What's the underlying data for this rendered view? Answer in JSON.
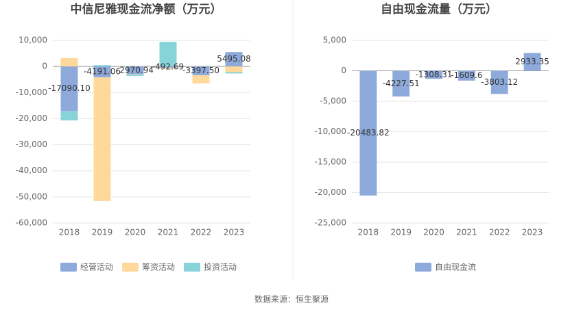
{
  "chart_data": [
    {
      "type": "bar",
      "title": "中信尼雅现金流净额（万元）",
      "categories": [
        "2018",
        "2019",
        "2020",
        "2021",
        "2022",
        "2023"
      ],
      "series": [
        {
          "name": "经营活动",
          "color": "#8eaadb",
          "values": [
            -17090.1,
            -4191.06,
            -2970.94,
            -492.69,
            -3397.5,
            5495.08
          ],
          "value_labels": [
            "-17090.10",
            "-4191.06",
            "-2970.94",
            "-492.69",
            "-3397.50",
            "5495.08"
          ]
        },
        {
          "name": "筹资活动",
          "color": "#ffd89b",
          "values": [
            3200,
            -47400,
            -200,
            -300,
            -3100,
            -2200
          ]
        },
        {
          "name": "投资活动",
          "color": "#86d4d8",
          "values": [
            -3600,
            500,
            -500,
            9400,
            0,
            -500
          ]
        }
      ],
      "stacked": true,
      "ylim": [
        -60000,
        10000
      ],
      "yticks": [
        {
          "value": -60000,
          "label": "-60,000"
        },
        {
          "value": -50000,
          "label": "-50,000"
        },
        {
          "value": -40000,
          "label": "-40,000"
        },
        {
          "value": -30000,
          "label": "-30,000"
        },
        {
          "value": -20000,
          "label": "-20,000"
        },
        {
          "value": -10000,
          "label": "-10,000"
        },
        0,
        {
          "value": 10000,
          "label": "10,000"
        }
      ],
      "grid": true
    },
    {
      "type": "bar",
      "title": "自由现金流量（万元）",
      "categories": [
        "2018",
        "2019",
        "2020",
        "2021",
        "2022",
        "2023"
      ],
      "series": [
        {
          "name": "自由现金流",
          "color": "#8eaadb",
          "values": [
            -20483.82,
            -4227.51,
            -1308.31,
            -1609.6,
            -3803.12,
            2933.35
          ]
        }
      ],
      "stacked": true,
      "ylim": [
        -25000,
        5000
      ],
      "yticks": [
        {
          "value": -25000,
          "label": "-25,000"
        },
        {
          "value": -20000,
          "label": "-20,000"
        },
        {
          "value": -15000,
          "label": "-15,000"
        },
        {
          "value": -10000,
          "label": "-10,000"
        },
        {
          "value": -5000,
          "label": "-5,000"
        },
        0,
        {
          "value": 5000,
          "label": "5,000"
        }
      ],
      "grid": true
    }
  ],
  "source": "数据来源：恒生聚源"
}
